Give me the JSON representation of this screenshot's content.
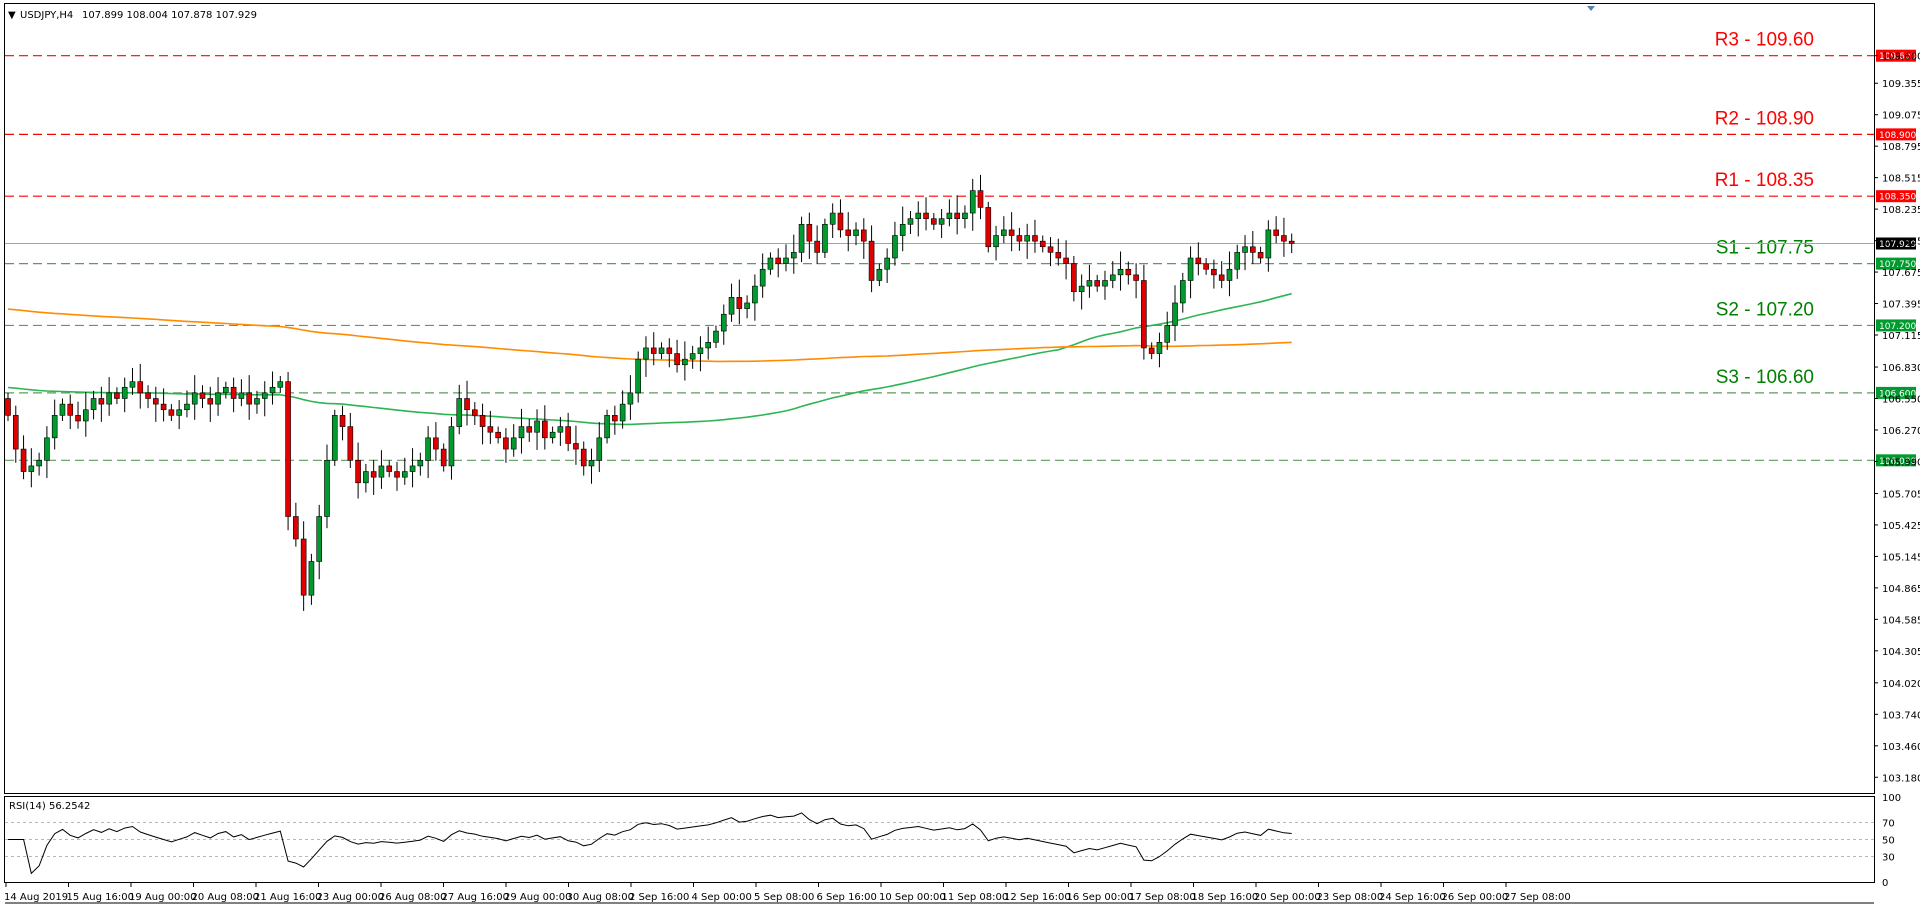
{
  "header": {
    "symbol": "USDJPY,H4",
    "ohlc": "107.899 108.004 107.878 107.929"
  },
  "rsi_header": "RSI(14) 56.2542",
  "colors": {
    "resistance": "#ff0000",
    "support": "#008000",
    "support_line": "#5b9b5b",
    "bull": "#009a2e",
    "bear": "#e00000",
    "ma_green": "#2db554",
    "ma_orange": "#ff8c00",
    "price_line": "#8faac8"
  },
  "chart_data": [
    {
      "type": "line",
      "title": "USDJPY,H4",
      "ylim": [
        103.04,
        110.06
      ],
      "y_ticks": [
        "109.600",
        "109.355",
        "109.075",
        "108.795",
        "108.515",
        "108.235",
        "107.955",
        "107.675",
        "107.395",
        "107.115",
        "106.830",
        "106.550",
        "106.270",
        "105.990",
        "105.705",
        "105.425",
        "105.145",
        "104.865",
        "104.585",
        "104.305",
        "104.020",
        "103.740",
        "103.460",
        "103.180"
      ],
      "x_labels": [
        "14 Aug 2019",
        "15 Aug 16:00",
        "19 Aug 00:00",
        "20 Aug 08:00",
        "21 Aug 16:00",
        "23 Aug 00:00",
        "26 Aug 08:00",
        "27 Aug 16:00",
        "29 Aug 00:00",
        "30 Aug 08:00",
        "2 Sep 16:00",
        "4 Sep 00:00",
        "5 Sep 08:00",
        "6 Sep 16:00",
        "10 Sep 00:00",
        "11 Sep 08:00",
        "12 Sep 16:00",
        "16 Sep 00:00",
        "17 Sep 08:00",
        "18 Sep 16:00",
        "20 Sep 00:00",
        "23 Sep 08:00",
        "24 Sep 16:00",
        "26 Sep 00:00",
        "27 Sep 08:00"
      ],
      "levels": [
        {
          "label": "R3 - 109.60",
          "value": 109.6,
          "tag": "109.600",
          "kind": "resistance"
        },
        {
          "label": "R2 - 108.90",
          "value": 108.9,
          "tag": "108.900",
          "kind": "resistance"
        },
        {
          "label": "R1 - 108.35",
          "value": 108.35,
          "tag": "108.350",
          "kind": "resistance"
        },
        {
          "label": "S1 - 107.75",
          "value": 107.75,
          "tag": "107.750",
          "kind": "support"
        },
        {
          "label": "S2 - 107.20",
          "value": 107.2,
          "tag": "107.200",
          "kind": "support"
        },
        {
          "label": "S3 - 106.60",
          "value": 106.6,
          "tag": "106.600",
          "kind": "support"
        },
        {
          "label": "",
          "value": 106.0,
          "tag": "106.000",
          "kind": "support"
        }
      ],
      "current_price": {
        "value": 107.929,
        "tag": "107.929"
      },
      "close": [
        106.4,
        106.1,
        105.9,
        105.95,
        106.0,
        106.2,
        106.4,
        106.5,
        106.4,
        106.35,
        106.45,
        106.55,
        106.5,
        106.6,
        106.55,
        106.65,
        106.7,
        106.6,
        106.55,
        106.5,
        106.45,
        106.4,
        106.45,
        106.5,
        106.6,
        106.55,
        106.5,
        106.6,
        106.65,
        106.55,
        106.6,
        106.5,
        106.55,
        106.6,
        106.65,
        106.7,
        105.5,
        105.3,
        104.8,
        105.1,
        105.5,
        106.0,
        106.4,
        106.3,
        106.0,
        105.8,
        105.9,
        105.85,
        105.95,
        105.9,
        105.85,
        105.9,
        105.95,
        106.0,
        106.2,
        106.1,
        105.95,
        106.3,
        106.55,
        106.45,
        106.4,
        106.3,
        106.25,
        106.2,
        106.1,
        106.2,
        106.3,
        106.25,
        106.35,
        106.2,
        106.25,
        106.3,
        106.15,
        106.1,
        105.95,
        106.0,
        106.2,
        106.4,
        106.35,
        106.5,
        106.6,
        106.9,
        107.0,
        106.95,
        107.0,
        106.95,
        106.85,
        106.9,
        106.95,
        107.0,
        107.05,
        107.15,
        107.3,
        107.45,
        107.35,
        107.4,
        107.55,
        107.7,
        107.8,
        107.75,
        107.8,
        107.85,
        108.1,
        107.95,
        107.85,
        108.1,
        108.2,
        108.05,
        108.0,
        108.05,
        107.95,
        107.6,
        107.7,
        107.8,
        108.0,
        108.1,
        108.15,
        108.2,
        108.15,
        108.1,
        108.15,
        108.2,
        108.15,
        108.2,
        108.4,
        108.25,
        107.9,
        108.0,
        108.05,
        108.0,
        107.95,
        108.0,
        107.95,
        107.9,
        107.85,
        107.8,
        107.75,
        107.5,
        107.55,
        107.6,
        107.55,
        107.6,
        107.65,
        107.7,
        107.65,
        107.6,
        107.0,
        106.95,
        107.05,
        107.2,
        107.4,
        107.6,
        107.8,
        107.75,
        107.7,
        107.65,
        107.6,
        107.7,
        107.85,
        107.9,
        107.85,
        107.8,
        108.05,
        108.0,
        107.95,
        107.93
      ],
      "rsi": {
        "ylim": [
          0,
          100
        ],
        "levels": [
          70,
          50,
          30
        ],
        "tick_labels": [
          "100",
          "70",
          "50",
          "30",
          "0"
        ]
      }
    }
  ]
}
